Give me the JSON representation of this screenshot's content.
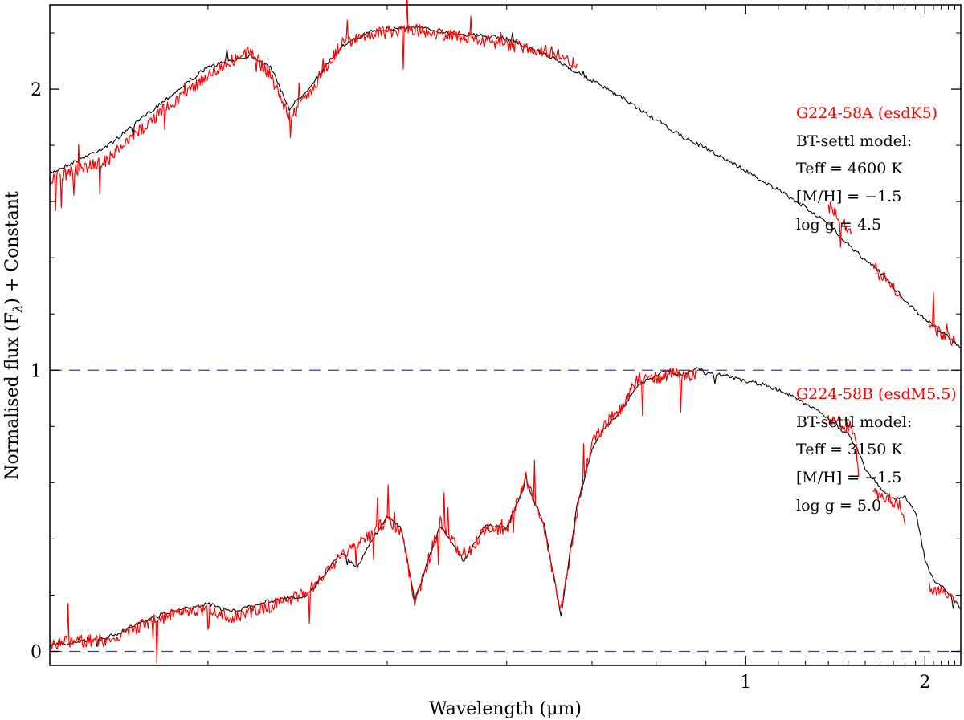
{
  "chart_data": {
    "type": "line",
    "xlabel": "Wavelength (μm)",
    "ylabel": "Normalised flux (F",
    "ylabel_sub": "λ",
    "ylabel_suffix": ") + Constant",
    "x_axis": {
      "range": [
        0.34,
        2.5
      ],
      "scale": "reciprocal",
      "ticks": [
        1,
        2
      ],
      "tick_labels": [
        "1",
        "2"
      ]
    },
    "y_axis": {
      "range": [
        -0.05,
        2.3
      ],
      "ticks": [
        0,
        1,
        2
      ],
      "tick_labels": [
        "0",
        "1",
        "2"
      ]
    },
    "reference_lines": [
      {
        "y": 1.0,
        "color": "#3333ff",
        "style": "dashed"
      },
      {
        "y": 0.0,
        "color": "#3333ff",
        "style": "dashed"
      }
    ],
    "colors": {
      "observed": "#ff0000",
      "model": "#000000",
      "reference": "#3333ff"
    },
    "grid": false,
    "series": [
      {
        "role": "model-A",
        "color": "#000000",
        "x": [
          0.34,
          0.36,
          0.38,
          0.4,
          0.41,
          0.42,
          0.43,
          0.44,
          0.45,
          0.47,
          0.49,
          0.52,
          0.55,
          0.6,
          0.65,
          0.7,
          0.75,
          0.8,
          0.85,
          0.9,
          1.0,
          1.1,
          1.2,
          1.3,
          1.4,
          1.5,
          1.6,
          1.8,
          2.0,
          2.2,
          2.5
        ],
        "y": [
          1.7,
          1.8,
          1.95,
          2.08,
          2.1,
          2.12,
          2.08,
          1.93,
          2.0,
          2.15,
          2.21,
          2.22,
          2.2,
          2.18,
          2.11,
          2.03,
          1.96,
          1.89,
          1.83,
          1.79,
          1.71,
          1.64,
          1.58,
          1.52,
          1.45,
          1.39,
          1.35,
          1.25,
          1.18,
          1.14,
          1.08
        ]
      },
      {
        "role": "observed-A",
        "color": "#ff0000",
        "segments": [
          {
            "x": [
              0.34,
              0.36,
              0.38,
              0.4,
              0.41,
              0.42,
              0.43,
              0.44,
              0.45,
              0.47,
              0.49,
              0.52,
              0.55,
              0.6,
              0.65,
              0.68
            ],
            "y": [
              1.68,
              1.75,
              1.92,
              2.05,
              2.1,
              2.13,
              2.05,
              1.9,
              1.98,
              2.16,
              2.2,
              2.21,
              2.19,
              2.16,
              2.13,
              2.09
            ]
          },
          {
            "x": [
              1.3,
              1.34,
              1.38,
              1.42
            ],
            "y": [
              1.58,
              1.56,
              1.52,
              1.49
            ]
          },
          {
            "x": [
              1.55,
              1.6,
              1.65,
              1.7,
              1.76
            ],
            "y": [
              1.37,
              1.34,
              1.32,
              1.29,
              1.26
            ]
          },
          {
            "x": [
              2.05,
              2.15,
              2.25,
              2.4
            ],
            "y": [
              1.16,
              1.14,
              1.12,
              1.1
            ]
          }
        ]
      },
      {
        "role": "model-B",
        "color": "#000000",
        "x": [
          0.34,
          0.36,
          0.38,
          0.4,
          0.41,
          0.43,
          0.45,
          0.47,
          0.48,
          0.49,
          0.5,
          0.51,
          0.52,
          0.54,
          0.56,
          0.58,
          0.6,
          0.62,
          0.64,
          0.66,
          0.68,
          0.7,
          0.72,
          0.74,
          0.77,
          0.8,
          0.82,
          0.85,
          0.88,
          0.9,
          0.95,
          1.0,
          1.05,
          1.1,
          1.15,
          1.2,
          1.3,
          1.4,
          1.45,
          1.5,
          1.6,
          1.7,
          1.8,
          1.9,
          2.0,
          2.1,
          2.2,
          2.3,
          2.4,
          2.5
        ],
        "y": [
          0.02,
          0.05,
          0.13,
          0.17,
          0.14,
          0.18,
          0.2,
          0.35,
          0.3,
          0.4,
          0.48,
          0.44,
          0.18,
          0.45,
          0.32,
          0.45,
          0.44,
          0.6,
          0.45,
          0.13,
          0.52,
          0.72,
          0.8,
          0.85,
          0.95,
          0.98,
          1.0,
          0.98,
          1.01,
          0.99,
          0.98,
          0.96,
          0.95,
          0.93,
          0.91,
          0.88,
          0.83,
          0.77,
          0.72,
          0.65,
          0.58,
          0.54,
          0.55,
          0.5,
          0.33,
          0.25,
          0.23,
          0.21,
          0.18,
          0.15
        ]
      },
      {
        "role": "observed-B",
        "color": "#ff0000",
        "segments": [
          {
            "x": [
              0.34,
              0.36,
              0.38,
              0.4,
              0.41,
              0.43,
              0.45,
              0.47,
              0.49,
              0.5,
              0.51,
              0.52,
              0.54,
              0.56,
              0.58,
              0.6,
              0.62,
              0.64,
              0.66,
              0.68,
              0.7,
              0.72,
              0.74,
              0.77,
              0.8,
              0.83,
              0.86,
              0.88
            ],
            "y": [
              0.03,
              0.04,
              0.12,
              0.15,
              0.12,
              0.16,
              0.21,
              0.34,
              0.42,
              0.47,
              0.43,
              0.17,
              0.46,
              0.33,
              0.44,
              0.43,
              0.62,
              0.44,
              0.14,
              0.5,
              0.74,
              0.81,
              0.86,
              0.97,
              0.97,
              0.99,
              0.98,
              0.99
            ]
          },
          {
            "x": [
              1.3,
              1.34,
              1.38,
              1.42,
              1.44,
              1.46
            ],
            "y": [
              0.83,
              0.82,
              0.8,
              0.8,
              0.77,
              0.62
            ]
          },
          {
            "x": [
              1.55,
              1.6,
              1.65,
              1.7,
              1.76,
              1.8
            ],
            "y": [
              0.56,
              0.56,
              0.55,
              0.53,
              0.52,
              0.45
            ]
          },
          {
            "x": [
              2.05,
              2.15,
              2.25,
              2.4
            ],
            "y": [
              0.23,
              0.22,
              0.21,
              0.18
            ]
          }
        ]
      }
    ],
    "annotations": [
      {
        "id": "a-name",
        "text": "G224-58A (esdK5)",
        "color": "#ff0000"
      },
      {
        "id": "a-model",
        "text": "BT-settl model:",
        "color": "#000000"
      },
      {
        "id": "a-teff",
        "text": "Teff = 4600 K",
        "color": "#000000"
      },
      {
        "id": "a-mh",
        "text": "[M/H] = −1.5",
        "color": "#000000"
      },
      {
        "id": "a-logg",
        "text": "log g = 4.5",
        "color": "#000000"
      },
      {
        "id": "b-name",
        "text": "G224-58B (esdM5.5)",
        "color": "#ff0000"
      },
      {
        "id": "b-model",
        "text": "BT-settl model:",
        "color": "#000000"
      },
      {
        "id": "b-teff",
        "text": "Teff = 3150 K",
        "color": "#000000"
      },
      {
        "id": "b-mh",
        "text": "[M/H] = −1.5",
        "color": "#000000"
      },
      {
        "id": "b-logg",
        "text": "log g = 5.0",
        "color": "#000000"
      }
    ]
  }
}
